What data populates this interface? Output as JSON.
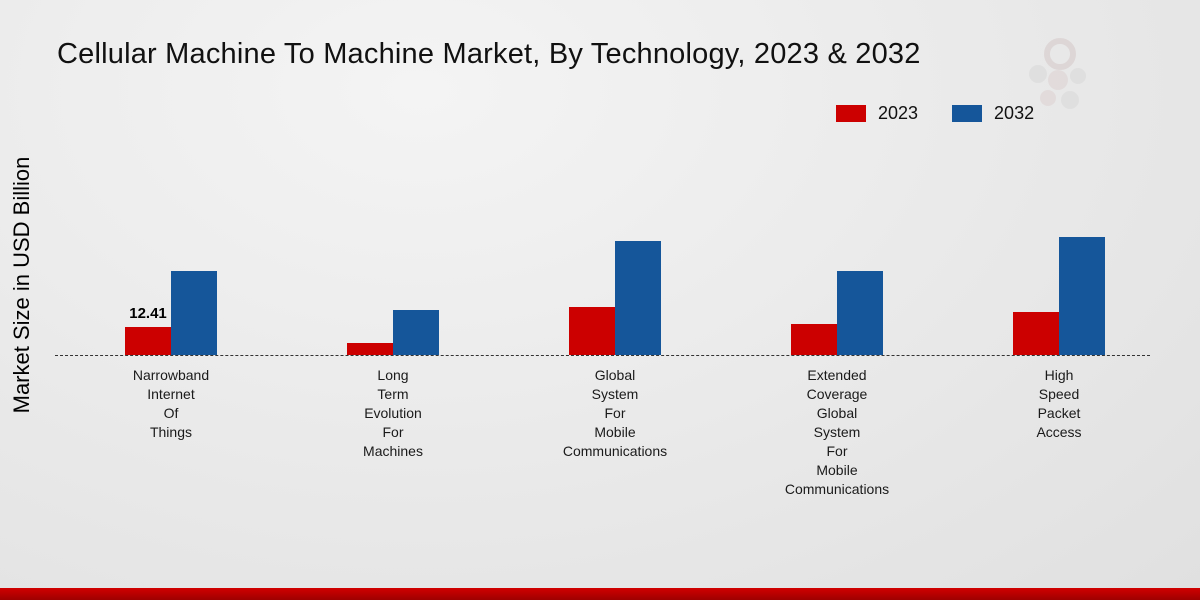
{
  "title": "Cellular Machine To Machine Market, By Technology, 2023 & 2032",
  "ylabel": "Market Size in USD Billion",
  "legend": [
    "2023",
    "2032"
  ],
  "chart_data": {
    "type": "bar",
    "title": "Cellular Machine To Machine Market, By Technology, 2023 & 2032",
    "xlabel": "",
    "ylabel": "Market Size in USD Billion",
    "grid": false,
    "legend_position": "top-right",
    "ylim": [
      0,
      55
    ],
    "categories": [
      [
        "Narrowband",
        "Internet",
        "Of",
        "Things"
      ],
      [
        "Long",
        "Term",
        "Evolution",
        "For",
        "Machines"
      ],
      [
        "Global",
        "System",
        "For",
        "Mobile",
        "Communications"
      ],
      [
        "Extended",
        "Coverage",
        "Global",
        "System",
        "For",
        "Mobile",
        "Communications"
      ],
      [
        "High",
        "Speed",
        "Packet",
        "Access"
      ]
    ],
    "series": [
      {
        "name": "2023",
        "color": "#cc0000",
        "values": [
          12.41,
          5.5,
          21,
          13.5,
          19
        ],
        "labels": [
          "12.41",
          "",
          "",
          "",
          ""
        ]
      },
      {
        "name": "2032",
        "color": "#15569a",
        "values": [
          37,
          20,
          50,
          37,
          52
        ],
        "labels": [
          "",
          "",
          "",
          "",
          ""
        ]
      }
    ],
    "annotations": [
      "12.41 shown above 2023 bar of Narrowband Internet Of Things"
    ]
  },
  "footer": {
    "bar_color": "#c00000"
  }
}
